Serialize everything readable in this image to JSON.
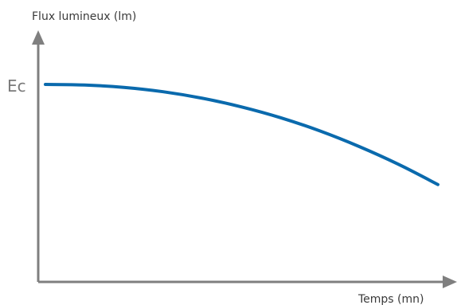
{
  "chart_data": {
    "type": "line",
    "ylabel": "Flux lumineux (lm)",
    "xlabel": "Temps (mn)",
    "y_tick_labels": [
      "Ec"
    ],
    "grid": false,
    "colors": {
      "line": "#0a6aad",
      "axis": "#7f7f7f"
    },
    "series": [
      {
        "x": [
          0,
          0.1,
          0.2,
          0.3,
          0.4,
          0.5,
          0.6,
          0.7,
          0.8,
          0.9,
          1.0
        ],
        "y": [
          1.0,
          0.997,
          0.985,
          0.963,
          0.93,
          0.886,
          0.831,
          0.764,
          0.685,
          0.595,
          0.493
        ]
      }
    ],
    "xlim": [
      0,
      1
    ],
    "ylim": [
      0,
      1
    ]
  }
}
